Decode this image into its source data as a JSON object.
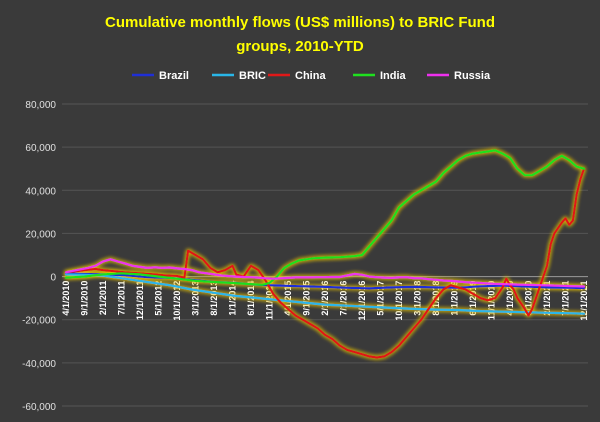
{
  "chart_data": {
    "type": "line",
    "title_lines": [
      "Cumulative monthly flows (US$ millions) to BRIC Fund",
      "groups, 2010-YTD"
    ],
    "y_ticks": [
      "80,000",
      "60,000",
      "40,000",
      "20,000",
      "0",
      "-20,000",
      "-40,000",
      "-60,000"
    ],
    "ylim": [
      -60000,
      80000
    ],
    "grid": true,
    "legend_position": "top",
    "x_labels": [
      "4/1/2010",
      "9/1/2010",
      "2/1/2011",
      "7/1/2011",
      "12/1/2011",
      "5/1/2012",
      "10/1/2012",
      "3/1/2013",
      "8/1/2013",
      "1/1/2014",
      "6/1/2014",
      "11/1/2014",
      "4/1/2015",
      "9/1/2015",
      "2/1/2016",
      "7/1/2016",
      "12/1/2016",
      "5/1/2017",
      "10/1/2017",
      "3/1/2018",
      "8/1/2018",
      "1/1/2019",
      "6/1/2019",
      "11/1/2019",
      "4/1/2020",
      "9/1/2020",
      "2/1/2021",
      "7/1/2021",
      "12/1/2021"
    ],
    "series": [
      {
        "name": "Brazil",
        "color": "#1f2fd6",
        "points": [
          [
            0,
            1500
          ],
          [
            5,
            1200
          ],
          [
            10,
            1000
          ],
          [
            16,
            600
          ],
          [
            22,
            -300
          ],
          [
            28,
            -600
          ],
          [
            34,
            -1500
          ],
          [
            40,
            -2500
          ],
          [
            46,
            -3000
          ],
          [
            52,
            -3800
          ],
          [
            58,
            -4200
          ],
          [
            64,
            -4500
          ],
          [
            70,
            -4800
          ],
          [
            76,
            -5200
          ],
          [
            82,
            -5500
          ],
          [
            88,
            -5000
          ],
          [
            94,
            -4800
          ],
          [
            100,
            -5000
          ],
          [
            106,
            -5200
          ],
          [
            112,
            -4500
          ],
          [
            118,
            -4200
          ],
          [
            124,
            -4600
          ],
          [
            130,
            -5000
          ],
          [
            136,
            -5200
          ],
          [
            140,
            -5300
          ]
        ]
      },
      {
        "name": "BRIC",
        "color": "#29b6e8",
        "points": [
          [
            0,
            1000
          ],
          [
            5,
            800
          ],
          [
            10,
            500
          ],
          [
            16,
            -1000
          ],
          [
            22,
            -2500
          ],
          [
            28,
            -4000
          ],
          [
            34,
            -6000
          ],
          [
            40,
            -7500
          ],
          [
            46,
            -9000
          ],
          [
            52,
            -10000
          ],
          [
            58,
            -11000
          ],
          [
            64,
            -12000
          ],
          [
            70,
            -13000
          ],
          [
            76,
            -13500
          ],
          [
            82,
            -14000
          ],
          [
            88,
            -14500
          ],
          [
            94,
            -15000
          ],
          [
            100,
            -15300
          ],
          [
            106,
            -15500
          ],
          [
            112,
            -16000
          ],
          [
            118,
            -16300
          ],
          [
            124,
            -16500
          ],
          [
            130,
            -16800
          ],
          [
            136,
            -17000
          ],
          [
            140,
            -17200
          ]
        ]
      },
      {
        "name": "China",
        "color": "#e01818",
        "points": [
          [
            0,
            2000
          ],
          [
            3,
            2500
          ],
          [
            5,
            3000
          ],
          [
            8,
            3500
          ],
          [
            10,
            3000
          ],
          [
            13,
            2500
          ],
          [
            16,
            2000
          ],
          [
            20,
            1500
          ],
          [
            24,
            1000
          ],
          [
            27,
            500
          ],
          [
            30,
            300
          ],
          [
            32,
            -500
          ],
          [
            33,
            12000
          ],
          [
            35,
            10000
          ],
          [
            37,
            8000
          ],
          [
            39,
            4000
          ],
          [
            41,
            2000
          ],
          [
            43,
            3000
          ],
          [
            45,
            5000
          ],
          [
            46,
            1000
          ],
          [
            48,
            0
          ],
          [
            50,
            5000
          ],
          [
            52,
            3000
          ],
          [
            54,
            -2000
          ],
          [
            56,
            -8000
          ],
          [
            58,
            -12000
          ],
          [
            60,
            -15000
          ],
          [
            62,
            -18000
          ],
          [
            64,
            -20000
          ],
          [
            66,
            -22000
          ],
          [
            68,
            -24000
          ],
          [
            70,
            -27000
          ],
          [
            72,
            -29000
          ],
          [
            74,
            -32000
          ],
          [
            76,
            -34000
          ],
          [
            78,
            -35000
          ],
          [
            80,
            -36000
          ],
          [
            82,
            -37000
          ],
          [
            84,
            -37500
          ],
          [
            86,
            -37000
          ],
          [
            88,
            -35000
          ],
          [
            90,
            -32000
          ],
          [
            92,
            -28000
          ],
          [
            94,
            -24000
          ],
          [
            96,
            -20000
          ],
          [
            98,
            -15000
          ],
          [
            100,
            -10000
          ],
          [
            102,
            -6000
          ],
          [
            104,
            -4000
          ],
          [
            106,
            -5000
          ],
          [
            108,
            -6000
          ],
          [
            110,
            -8000
          ],
          [
            112,
            -10000
          ],
          [
            114,
            -11000
          ],
          [
            116,
            -10000
          ],
          [
            118,
            -5000
          ],
          [
            119,
            -1000
          ],
          [
            120,
            -4000
          ],
          [
            121,
            -6000
          ],
          [
            122,
            -10000
          ],
          [
            124,
            -15000
          ],
          [
            125,
            -18000
          ],
          [
            126,
            -15000
          ],
          [
            128,
            -5000
          ],
          [
            130,
            5000
          ],
          [
            131,
            15000
          ],
          [
            132,
            20000
          ],
          [
            134,
            25000
          ],
          [
            135,
            27000
          ],
          [
            136,
            24000
          ],
          [
            137,
            26000
          ],
          [
            138,
            38000
          ],
          [
            139,
            45000
          ],
          [
            140,
            50000
          ]
        ]
      },
      {
        "name": "India",
        "color": "#1fe01f",
        "points": [
          [
            0,
            -500
          ],
          [
            5,
            0
          ],
          [
            10,
            1000
          ],
          [
            15,
            1500
          ],
          [
            20,
            1000
          ],
          [
            25,
            0
          ],
          [
            30,
            -1000
          ],
          [
            35,
            -2000
          ],
          [
            40,
            -2500
          ],
          [
            45,
            -3000
          ],
          [
            50,
            -3500
          ],
          [
            53,
            -3800
          ],
          [
            55,
            -3000
          ],
          [
            57,
            0
          ],
          [
            59,
            4000
          ],
          [
            61,
            6000
          ],
          [
            63,
            7500
          ],
          [
            65,
            8000
          ],
          [
            67,
            8500
          ],
          [
            70,
            8800
          ],
          [
            74,
            9000
          ],
          [
            78,
            9500
          ],
          [
            80,
            10000
          ],
          [
            82,
            14000
          ],
          [
            84,
            18000
          ],
          [
            86,
            22000
          ],
          [
            88,
            26000
          ],
          [
            90,
            32000
          ],
          [
            92,
            35000
          ],
          [
            94,
            38000
          ],
          [
            96,
            40000
          ],
          [
            98,
            42000
          ],
          [
            100,
            44000
          ],
          [
            102,
            48000
          ],
          [
            104,
            51000
          ],
          [
            106,
            54000
          ],
          [
            108,
            56000
          ],
          [
            110,
            57000
          ],
          [
            112,
            57500
          ],
          [
            114,
            58000
          ],
          [
            116,
            58500
          ],
          [
            118,
            57000
          ],
          [
            120,
            55000
          ],
          [
            122,
            50000
          ],
          [
            124,
            47000
          ],
          [
            126,
            47000
          ],
          [
            128,
            49000
          ],
          [
            130,
            51000
          ],
          [
            132,
            54000
          ],
          [
            134,
            56000
          ],
          [
            136,
            54000
          ],
          [
            138,
            51000
          ],
          [
            140,
            50000
          ]
        ]
      },
      {
        "name": "Russia",
        "color": "#ee30ee",
        "points": [
          [
            0,
            2000
          ],
          [
            3,
            3000
          ],
          [
            6,
            4000
          ],
          [
            8,
            5000
          ],
          [
            10,
            7000
          ],
          [
            12,
            8000
          ],
          [
            14,
            7000
          ],
          [
            16,
            6000
          ],
          [
            18,
            5000
          ],
          [
            20,
            4500
          ],
          [
            22,
            4000
          ],
          [
            24,
            4300
          ],
          [
            26,
            4000
          ],
          [
            28,
            4200
          ],
          [
            30,
            3800
          ],
          [
            32,
            3500
          ],
          [
            34,
            3000
          ],
          [
            36,
            2000
          ],
          [
            38,
            1500
          ],
          [
            40,
            1000
          ],
          [
            42,
            500
          ],
          [
            44,
            200
          ],
          [
            46,
            0
          ],
          [
            48,
            -200
          ],
          [
            50,
            -300
          ],
          [
            52,
            -500
          ],
          [
            54,
            -800
          ],
          [
            56,
            -1000
          ],
          [
            58,
            -800
          ],
          [
            60,
            -600
          ],
          [
            62,
            -400
          ],
          [
            64,
            -400
          ],
          [
            66,
            -400
          ],
          [
            68,
            -300
          ],
          [
            70,
            -300
          ],
          [
            72,
            -200
          ],
          [
            74,
            -200
          ],
          [
            76,
            500
          ],
          [
            78,
            1200
          ],
          [
            80,
            800
          ],
          [
            82,
            0
          ],
          [
            84,
            -300
          ],
          [
            86,
            -500
          ],
          [
            88,
            -600
          ],
          [
            90,
            -400
          ],
          [
            92,
            -300
          ],
          [
            94,
            -700
          ],
          [
            96,
            -800
          ],
          [
            98,
            -1200
          ],
          [
            100,
            -1500
          ],
          [
            102,
            -1800
          ],
          [
            104,
            -2000
          ],
          [
            106,
            -2300
          ],
          [
            108,
            -2600
          ],
          [
            110,
            -2800
          ],
          [
            112,
            -3000
          ],
          [
            114,
            -3200
          ],
          [
            116,
            -3400
          ],
          [
            118,
            -3500
          ],
          [
            120,
            -3600
          ],
          [
            122,
            -3700
          ],
          [
            124,
            -3800
          ],
          [
            126,
            -3900
          ],
          [
            128,
            -4000
          ],
          [
            130,
            -4100
          ],
          [
            132,
            -4200
          ],
          [
            134,
            -4300
          ],
          [
            136,
            -4400
          ],
          [
            138,
            -4500
          ],
          [
            140,
            -4600
          ]
        ]
      }
    ]
  }
}
